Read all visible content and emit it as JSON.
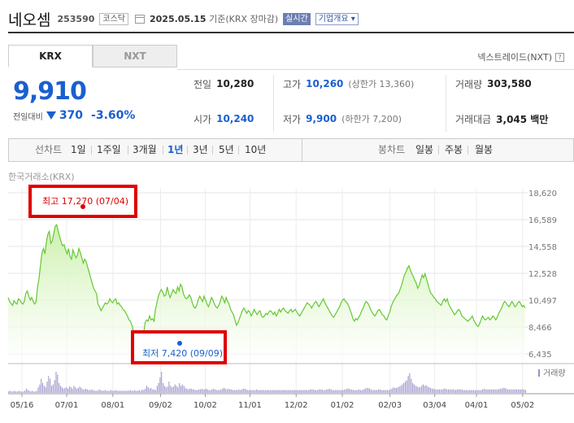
{
  "header": {
    "stock_name": "네오셈",
    "stock_code": "253590",
    "market_badge": "코스닥",
    "date": "2025.05.15",
    "date_suffix": "기준(KRX 장마감)",
    "realtime_label": "실시간",
    "company_info_label": "기업개요 ▾"
  },
  "tabs": [
    {
      "label": "KRX",
      "active": true
    },
    {
      "label": "NXT",
      "active": false
    }
  ],
  "nextrade_link": "넥스트레이드(NXT)",
  "help_icon": "help-icon",
  "price": {
    "current": "9,910",
    "change_label": "전일대비",
    "change_amount": "370",
    "change_direction": "down",
    "change_percent": "-3.60%",
    "color_down": "#1a5fd0"
  },
  "stats": {
    "prev_close": {
      "label": "전일",
      "value": "10,280"
    },
    "high": {
      "label": "고가",
      "value": "10,260",
      "sub": "(상한가 13,360)"
    },
    "volume": {
      "label": "거래량",
      "value": "303,580"
    },
    "open": {
      "label": "시가",
      "value": "10,240"
    },
    "low": {
      "label": "저가",
      "value": "9,900",
      "sub": "(하한가 7,200)"
    },
    "trade_value": {
      "label": "거래대금",
      "value": "3,045 백만"
    }
  },
  "toolbar": {
    "line_chart_label": "선차트",
    "periods": [
      "1일",
      "1주일",
      "3개월",
      "1년",
      "3년",
      "5년",
      "10년"
    ],
    "selected_period": "1년",
    "candle_chart_label": "봉차트",
    "candle_periods": [
      "일봉",
      "주봉",
      "월봉"
    ]
  },
  "exchange_label": "한국거래소(KRX)",
  "annotations": {
    "high": "최고 17,270 (07/04)",
    "low": "최저 7,420 (09/09)",
    "high_color": "#e00000",
    "low_color": "#1a5fd0"
  },
  "volume_legend": "거래량",
  "chart_data": {
    "type": "area",
    "y_ticks": [
      18620,
      16589,
      14558,
      12528,
      10497,
      8466,
      6435
    ],
    "y_tick_labels": [
      "18,620",
      "16,589",
      "14,558",
      "12,528",
      "10,497",
      "8,466",
      "6,435"
    ],
    "ylim": [
      6435,
      18620
    ],
    "x_tick_labels": [
      "05/16",
      "07/01",
      "08/01",
      "09/02",
      "10/02",
      "11/01",
      "12/02",
      "01/02",
      "02/03",
      "03/04",
      "04/01",
      "05/02"
    ],
    "x_tick_positions": [
      0,
      30,
      61,
      93,
      123,
      153,
      184,
      215,
      247,
      277,
      305,
      336
    ],
    "x_total": 348,
    "price_series": [
      10700,
      10400,
      10250,
      10100,
      10450,
      10300,
      10200,
      10600,
      10500,
      10300,
      10200,
      10400,
      11000,
      11200,
      10800,
      10500,
      10700,
      10400,
      10200,
      10400,
      11500,
      12200,
      13200,
      14100,
      14400,
      14000,
      14900,
      15500,
      15700,
      14800,
      15000,
      15600,
      16100,
      16200,
      15700,
      15300,
      14900,
      14600,
      14700,
      14300,
      14000,
      14400,
      13800,
      13600,
      14300,
      14000,
      13700,
      13900,
      14400,
      14100,
      13700,
      13300,
      13600,
      13400,
      13000,
      12600,
      12200,
      11800,
      11400,
      11200,
      11000,
      10200,
      10000,
      9700,
      9900,
      10100,
      10300,
      10200,
      10300,
      10600,
      10400,
      10300,
      10500,
      10600,
      10200,
      10300,
      10100,
      10000,
      9800,
      9700,
      9500,
      9300,
      9000,
      8900,
      8600,
      8200,
      8000,
      7900,
      7700,
      7600,
      7420,
      7600,
      8000,
      8800,
      9000,
      8900,
      9300,
      9000,
      9100,
      8900,
      9800,
      10300,
      10800,
      11100,
      11300,
      11100,
      10800,
      10900,
      11500,
      11000,
      10700,
      11000,
      11300,
      11100,
      11000,
      11500,
      11200,
      11700,
      11500,
      11000,
      10700,
      10600,
      10700,
      10900,
      10700,
      10300,
      10000,
      9900,
      10100,
      10500,
      10800,
      10600,
      10400,
      10800,
      10500,
      10200,
      10000,
      10300,
      10700,
      10500,
      10200,
      10000,
      9900,
      10100,
      10400,
      10800,
      10600,
      10300,
      10700,
      10400,
      10200,
      9800,
      9600,
      9400,
      9000,
      8600,
      8800,
      9100,
      9400,
      9700,
      9900,
      9700,
      9500,
      9700,
      9600,
      9300,
      9500,
      9800,
      9600,
      9400,
      9600,
      9700,
      9300,
      9200,
      9300,
      9500,
      9400,
      9600,
      9700,
      9600,
      9400,
      9600,
      9300,
      9500,
      9800,
      9600,
      9800,
      9900,
      9700,
      9600,
      9500,
      9700,
      9800,
      9600,
      9700,
      9800,
      9600,
      9400,
      9300,
      9500,
      9700,
      9900,
      10100,
      10300,
      10200,
      10100,
      9900,
      10100,
      10300,
      10400,
      10200,
      10000,
      10200,
      10400,
      10600,
      10300,
      10100,
      9900,
      9700,
      9500,
      9300,
      9200,
      9400,
      9600,
      9800,
      10000,
      10300,
      10500,
      10600,
      10400,
      10300,
      10100,
      9800,
      9500,
      9100,
      8900,
      9100,
      9000,
      9200,
      9400,
      9700,
      9900,
      10200,
      10400,
      10300,
      10100,
      9800,
      9600,
      9400,
      9300,
      9500,
      9700,
      9800,
      9600,
      9400,
      9300,
      9100,
      9000,
      9300,
      9600,
      10000,
      10300,
      10500,
      10700,
      10900,
      11000,
      11300,
      11600,
      12000,
      12400,
      12600,
      12900,
      13100,
      12800,
      12500,
      12300,
      12000,
      11800,
      11400,
      11600,
      12000,
      12400,
      12200,
      12500,
      12100,
      11700,
      11300,
      11000,
      10900,
      10700,
      10600,
      10400,
      10300,
      10200,
      10100,
      10400,
      10600,
      10400,
      10600,
      10200,
      10000,
      9800,
      9600,
      9400,
      9500,
      9700,
      9800,
      9600,
      9300,
      9200,
      9100,
      9000,
      8900,
      9000,
      9100,
      9300,
      9000,
      8800,
      8600,
      8500,
      8700,
      9000,
      9300,
      9100,
      9000,
      9100,
      9200,
      9000,
      9100,
      9300,
      9200,
      9000,
      9200,
      9500,
      9700,
      9900,
      10200,
      10400,
      10300,
      10100,
      10000,
      10200,
      10400,
      10200,
      10000,
      10100,
      10300,
      10400,
      10200,
      10000,
      10100,
      9910
    ],
    "volume_series": [
      2,
      3,
      2,
      2,
      3,
      2,
      2,
      3,
      2,
      2,
      2,
      3,
      6,
      4,
      3,
      2,
      3,
      2,
      2,
      3,
      8,
      12,
      20,
      14,
      10,
      8,
      16,
      24,
      20,
      10,
      12,
      18,
      30,
      26,
      14,
      10,
      8,
      6,
      7,
      8,
      6,
      9,
      8,
      6,
      10,
      8,
      6,
      7,
      9,
      7,
      5,
      5,
      6,
      5,
      4,
      4,
      5,
      4,
      3,
      3,
      3,
      5,
      4,
      3,
      3,
      4,
      3,
      3,
      3,
      4,
      3,
      3,
      4,
      3,
      3,
      3,
      3,
      3,
      3,
      3,
      3,
      3,
      4,
      3,
      3,
      4,
      3,
      3,
      4,
      3,
      5,
      4,
      6,
      10,
      8,
      6,
      7,
      5,
      5,
      4,
      10,
      14,
      22,
      30,
      14,
      10,
      8,
      9,
      16,
      10,
      8,
      9,
      12,
      10,
      8,
      14,
      10,
      12,
      10,
      7,
      6,
      5,
      6,
      6,
      5,
      5,
      4,
      4,
      5,
      5,
      6,
      5,
      5,
      6,
      5,
      4,
      4,
      5,
      6,
      5,
      4,
      4,
      4,
      5,
      6,
      7,
      6,
      5,
      6,
      5,
      5,
      4,
      4,
      4,
      4,
      5,
      4,
      5,
      6,
      6,
      5,
      4,
      4,
      4,
      4,
      4,
      4,
      5,
      4,
      4,
      4,
      4,
      4,
      4,
      4,
      4,
      4,
      4,
      4,
      4,
      4,
      4,
      4,
      4,
      4,
      4,
      4,
      4,
      4,
      4,
      4,
      4,
      4,
      4,
      4,
      4,
      4,
      4,
      4,
      4,
      4,
      4,
      4,
      5,
      5,
      5,
      4,
      4,
      4,
      5,
      5,
      5,
      4,
      4,
      5,
      5,
      6,
      5,
      4,
      4,
      4,
      4,
      4,
      4,
      4,
      4,
      5,
      5,
      6,
      6,
      5,
      5,
      4,
      4,
      4,
      4,
      5,
      4,
      4,
      5,
      6,
      7,
      7,
      6,
      5,
      4,
      4,
      4,
      4,
      5,
      5,
      4,
      4,
      4,
      4,
      4,
      4,
      5,
      6,
      8,
      7,
      7,
      8,
      9,
      10,
      12,
      14,
      16,
      18,
      24,
      28,
      20,
      14,
      12,
      10,
      9,
      8,
      8,
      10,
      12,
      10,
      11,
      9,
      8,
      7,
      6,
      6,
      5,
      5,
      5,
      5,
      5,
      5,
      6,
      6,
      5,
      5,
      5,
      5,
      5,
      5,
      4,
      5,
      5,
      5,
      5,
      4,
      4,
      4,
      4,
      4,
      4,
      4,
      4,
      4,
      4,
      4,
      4,
      4,
      5,
      6,
      5,
      5,
      5,
      5,
      5,
      5,
      5,
      5,
      5,
      5,
      6,
      6,
      7,
      7,
      6,
      5,
      5,
      5,
      5,
      5,
      5,
      5,
      5,
      5,
      5,
      5,
      5,
      4
    ]
  }
}
